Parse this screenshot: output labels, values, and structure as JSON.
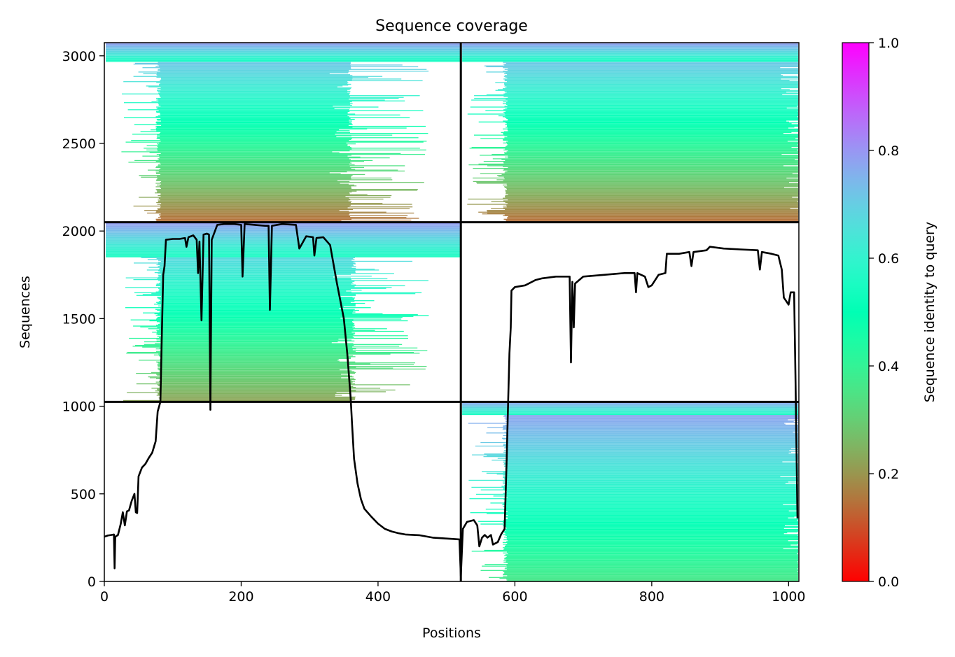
{
  "chart_data": {
    "type": "heatmap",
    "title": "Sequence coverage",
    "xlabel": "Positions",
    "ylabel": "Sequences",
    "xlim": [
      0,
      1015
    ],
    "ylim": [
      0,
      3075
    ],
    "x_ticks": [
      0,
      200,
      400,
      600,
      800,
      1000
    ],
    "y_ticks": [
      0,
      500,
      1000,
      1500,
      2000,
      2500,
      3000
    ],
    "grid": false,
    "divider_x": 521,
    "divider_y": [
      1025,
      2050
    ],
    "blocks": [
      {
        "name": "bottom-left",
        "x_range": [
          0,
          521
        ],
        "y_range": [
          0,
          1025
        ],
        "filled": false
      },
      {
        "name": "bottom-right",
        "x_range": [
          521,
          1015
        ],
        "y_range": [
          0,
          1025
        ],
        "filled": true,
        "header_rows": [
          950,
          1025
        ],
        "identity_top": 0.78,
        "identity_bottom": 0.36,
        "core_x": [
          590,
          1013
        ]
      },
      {
        "name": "middle-left",
        "x_range": [
          0,
          521
        ],
        "y_range": [
          1025,
          2050
        ],
        "filled": true,
        "header_rows": [
          1850,
          2050
        ],
        "identity_top": 0.68,
        "identity_bottom": 0.22,
        "core_x": [
          83,
          360
        ]
      },
      {
        "name": "middle-right",
        "x_range": [
          521,
          1015
        ],
        "y_range": [
          1025,
          2050
        ],
        "filled": false
      },
      {
        "name": "top-left",
        "x_range": [
          0,
          521
        ],
        "y_range": [
          2050,
          3075
        ],
        "filled": true,
        "header_rows": [
          2965,
          3075
        ],
        "identity_top": 0.72,
        "identity_bottom": 0.14,
        "core_x": [
          83,
          355
        ]
      },
      {
        "name": "top-right",
        "x_range": [
          521,
          1015
        ],
        "y_range": [
          2050,
          3075
        ],
        "filled": true,
        "header_rows": [
          2965,
          3075
        ],
        "identity_top": 0.72,
        "identity_bottom": 0.14,
        "core_x": [
          590,
          1013
        ]
      }
    ],
    "coverage_line": {
      "name": "coverage",
      "color": "#000000",
      "points": [
        [
          0,
          255
        ],
        [
          5,
          262
        ],
        [
          10,
          265
        ],
        [
          14,
          268
        ],
        [
          15,
          75
        ],
        [
          16,
          255
        ],
        [
          20,
          265
        ],
        [
          24,
          330
        ],
        [
          27,
          395
        ],
        [
          30,
          320
        ],
        [
          33,
          400
        ],
        [
          36,
          405
        ],
        [
          40,
          460
        ],
        [
          44,
          500
        ],
        [
          46,
          395
        ],
        [
          48,
          390
        ],
        [
          50,
          600
        ],
        [
          55,
          650
        ],
        [
          60,
          670
        ],
        [
          65,
          705
        ],
        [
          70,
          735
        ],
        [
          75,
          800
        ],
        [
          78,
          970
        ],
        [
          82,
          1025
        ],
        [
          84,
          1400
        ],
        [
          86,
          1750
        ],
        [
          88,
          1800
        ],
        [
          90,
          1950
        ],
        [
          100,
          1955
        ],
        [
          110,
          1955
        ],
        [
          118,
          1960
        ],
        [
          120,
          1910
        ],
        [
          123,
          1965
        ],
        [
          130,
          1975
        ],
        [
          135,
          1950
        ],
        [
          137,
          1760
        ],
        [
          139,
          1940
        ],
        [
          142,
          1490
        ],
        [
          145,
          1980
        ],
        [
          150,
          1985
        ],
        [
          153,
          1980
        ],
        [
          155,
          980
        ],
        [
          157,
          1950
        ],
        [
          165,
          2035
        ],
        [
          175,
          2040
        ],
        [
          190,
          2040
        ],
        [
          200,
          2035
        ],
        [
          202,
          1740
        ],
        [
          205,
          2040
        ],
        [
          220,
          2035
        ],
        [
          235,
          2030
        ],
        [
          240,
          2030
        ],
        [
          242,
          1550
        ],
        [
          245,
          2030
        ],
        [
          260,
          2040
        ],
        [
          280,
          2035
        ],
        [
          285,
          1900
        ],
        [
          295,
          1970
        ],
        [
          305,
          1965
        ],
        [
          307,
          1860
        ],
        [
          310,
          1960
        ],
        [
          320,
          1965
        ],
        [
          330,
          1920
        ],
        [
          340,
          1700
        ],
        [
          345,
          1600
        ],
        [
          350,
          1500
        ],
        [
          355,
          1300
        ],
        [
          360,
          1050
        ],
        [
          362,
          900
        ],
        [
          365,
          700
        ],
        [
          370,
          560
        ],
        [
          375,
          470
        ],
        [
          380,
          415
        ],
        [
          390,
          370
        ],
        [
          400,
          330
        ],
        [
          410,
          300
        ],
        [
          420,
          285
        ],
        [
          430,
          275
        ],
        [
          440,
          268
        ],
        [
          460,
          264
        ],
        [
          480,
          250
        ],
        [
          500,
          245
        ],
        [
          519,
          240
        ],
        [
          521,
          30
        ],
        [
          524,
          300
        ],
        [
          530,
          340
        ],
        [
          540,
          350
        ],
        [
          545,
          320
        ],
        [
          548,
          200
        ],
        [
          552,
          250
        ],
        [
          556,
          265
        ],
        [
          560,
          250
        ],
        [
          565,
          265
        ],
        [
          568,
          210
        ],
        [
          575,
          225
        ],
        [
          580,
          270
        ],
        [
          585,
          300
        ],
        [
          588,
          700
        ],
        [
          590,
          1000
        ],
        [
          592,
          1300
        ],
        [
          594,
          1450
        ],
        [
          595,
          1660
        ],
        [
          600,
          1680
        ],
        [
          615,
          1690
        ],
        [
          630,
          1720
        ],
        [
          640,
          1730
        ],
        [
          660,
          1740
        ],
        [
          680,
          1740
        ],
        [
          682,
          1250
        ],
        [
          684,
          1710
        ],
        [
          686,
          1450
        ],
        [
          688,
          1700
        ],
        [
          700,
          1740
        ],
        [
          730,
          1750
        ],
        [
          760,
          1760
        ],
        [
          775,
          1760
        ],
        [
          777,
          1650
        ],
        [
          779,
          1760
        ],
        [
          790,
          1740
        ],
        [
          795,
          1680
        ],
        [
          800,
          1690
        ],
        [
          810,
          1750
        ],
        [
          820,
          1760
        ],
        [
          822,
          1870
        ],
        [
          840,
          1870
        ],
        [
          855,
          1880
        ],
        [
          858,
          1800
        ],
        [
          861,
          1880
        ],
        [
          880,
          1890
        ],
        [
          885,
          1910
        ],
        [
          905,
          1900
        ],
        [
          930,
          1895
        ],
        [
          955,
          1890
        ],
        [
          958,
          1780
        ],
        [
          961,
          1880
        ],
        [
          975,
          1870
        ],
        [
          985,
          1860
        ],
        [
          990,
          1780
        ],
        [
          993,
          1620
        ],
        [
          1000,
          1580
        ],
        [
          1003,
          1650
        ],
        [
          1008,
          1650
        ],
        [
          1010,
          1180
        ],
        [
          1013,
          360
        ]
      ]
    },
    "colorbar": {
      "label": "Sequence identity to query",
      "range": [
        0,
        1
      ],
      "ticks": [
        "0.0",
        "0.2",
        "0.4",
        "0.6",
        "0.8",
        "1.0"
      ],
      "colormap": "rainbow_r"
    }
  }
}
